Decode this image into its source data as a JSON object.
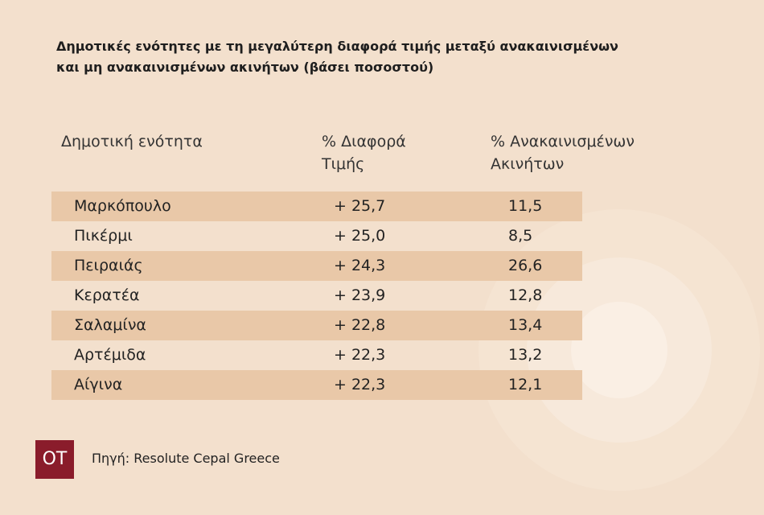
{
  "header": {
    "title": [
      "Δημοτικές ενότητες με τη μεγαλύτερη διαφορά τιμής μεταξύ ανακαινισμένων",
      "και μη ανακαινισμένων ακινήτων (βάσει ποσοστού)"
    ]
  },
  "table": {
    "columns": [
      "Δημοτική ενότητα",
      "% Διαφορά Τιμής",
      "% Ανακαινισμένων Ακινήτων"
    ],
    "rows": [
      [
        "Μαρκόπουλο",
        "+ 25,7",
        "11,5"
      ],
      [
        "Πικέρμι",
        "+ 25,0",
        "8,5"
      ],
      [
        "Πειραιάς",
        "+ 24,3",
        "26,6"
      ],
      [
        "Κερατέα",
        "+ 23,9",
        "12,8"
      ],
      [
        "Σαλαμίνα",
        "+ 22,8",
        "13,4"
      ],
      [
        "Αρτέμιδα",
        "+ 22,3",
        "13,2"
      ],
      [
        "Αίγινα",
        "+ 22,3",
        "12,1"
      ]
    ]
  },
  "footer": {
    "logo": "OT",
    "source": "Πηγή: Resolute Cepal Greece"
  }
}
